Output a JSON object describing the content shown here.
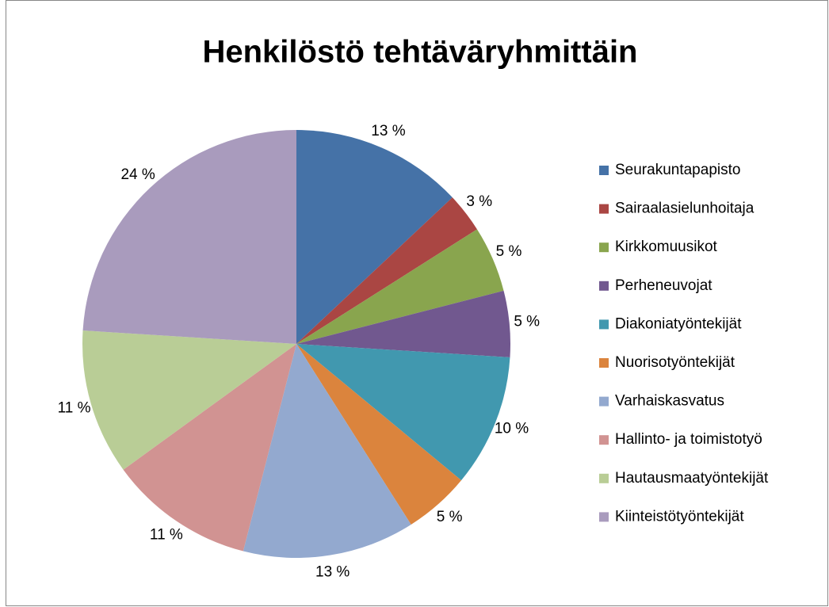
{
  "chart_data": {
    "type": "pie",
    "title": "Henkilöstö tehtäväryhmittäin",
    "categories": [
      "Seurakuntapapisto",
      "Sairaalasielunhoitaja",
      "Kirkkomuusikot",
      "Perheneuvojat",
      "Diakoniatyöntekijät",
      "Nuorisotyöntekijät",
      "Varhaiskasvatus",
      "Hallinto- ja toimistotyö",
      "Hautausmaatyöntekijät",
      "Kiinteistötyöntekijät"
    ],
    "values": [
      13,
      3,
      5,
      5,
      10,
      5,
      13,
      11,
      11,
      24
    ],
    "value_labels": [
      "13 %",
      "3 %",
      "5 %",
      "5 %",
      "10 %",
      "5 %",
      "13 %",
      "11 %",
      "11 %",
      "24 %"
    ],
    "colors": [
      "#4572a7",
      "#aa4643",
      "#89a54e",
      "#71588f",
      "#4198af",
      "#db843d",
      "#93a9cf",
      "#d19392",
      "#b9cd96",
      "#a99bbd"
    ],
    "legend": "right"
  }
}
